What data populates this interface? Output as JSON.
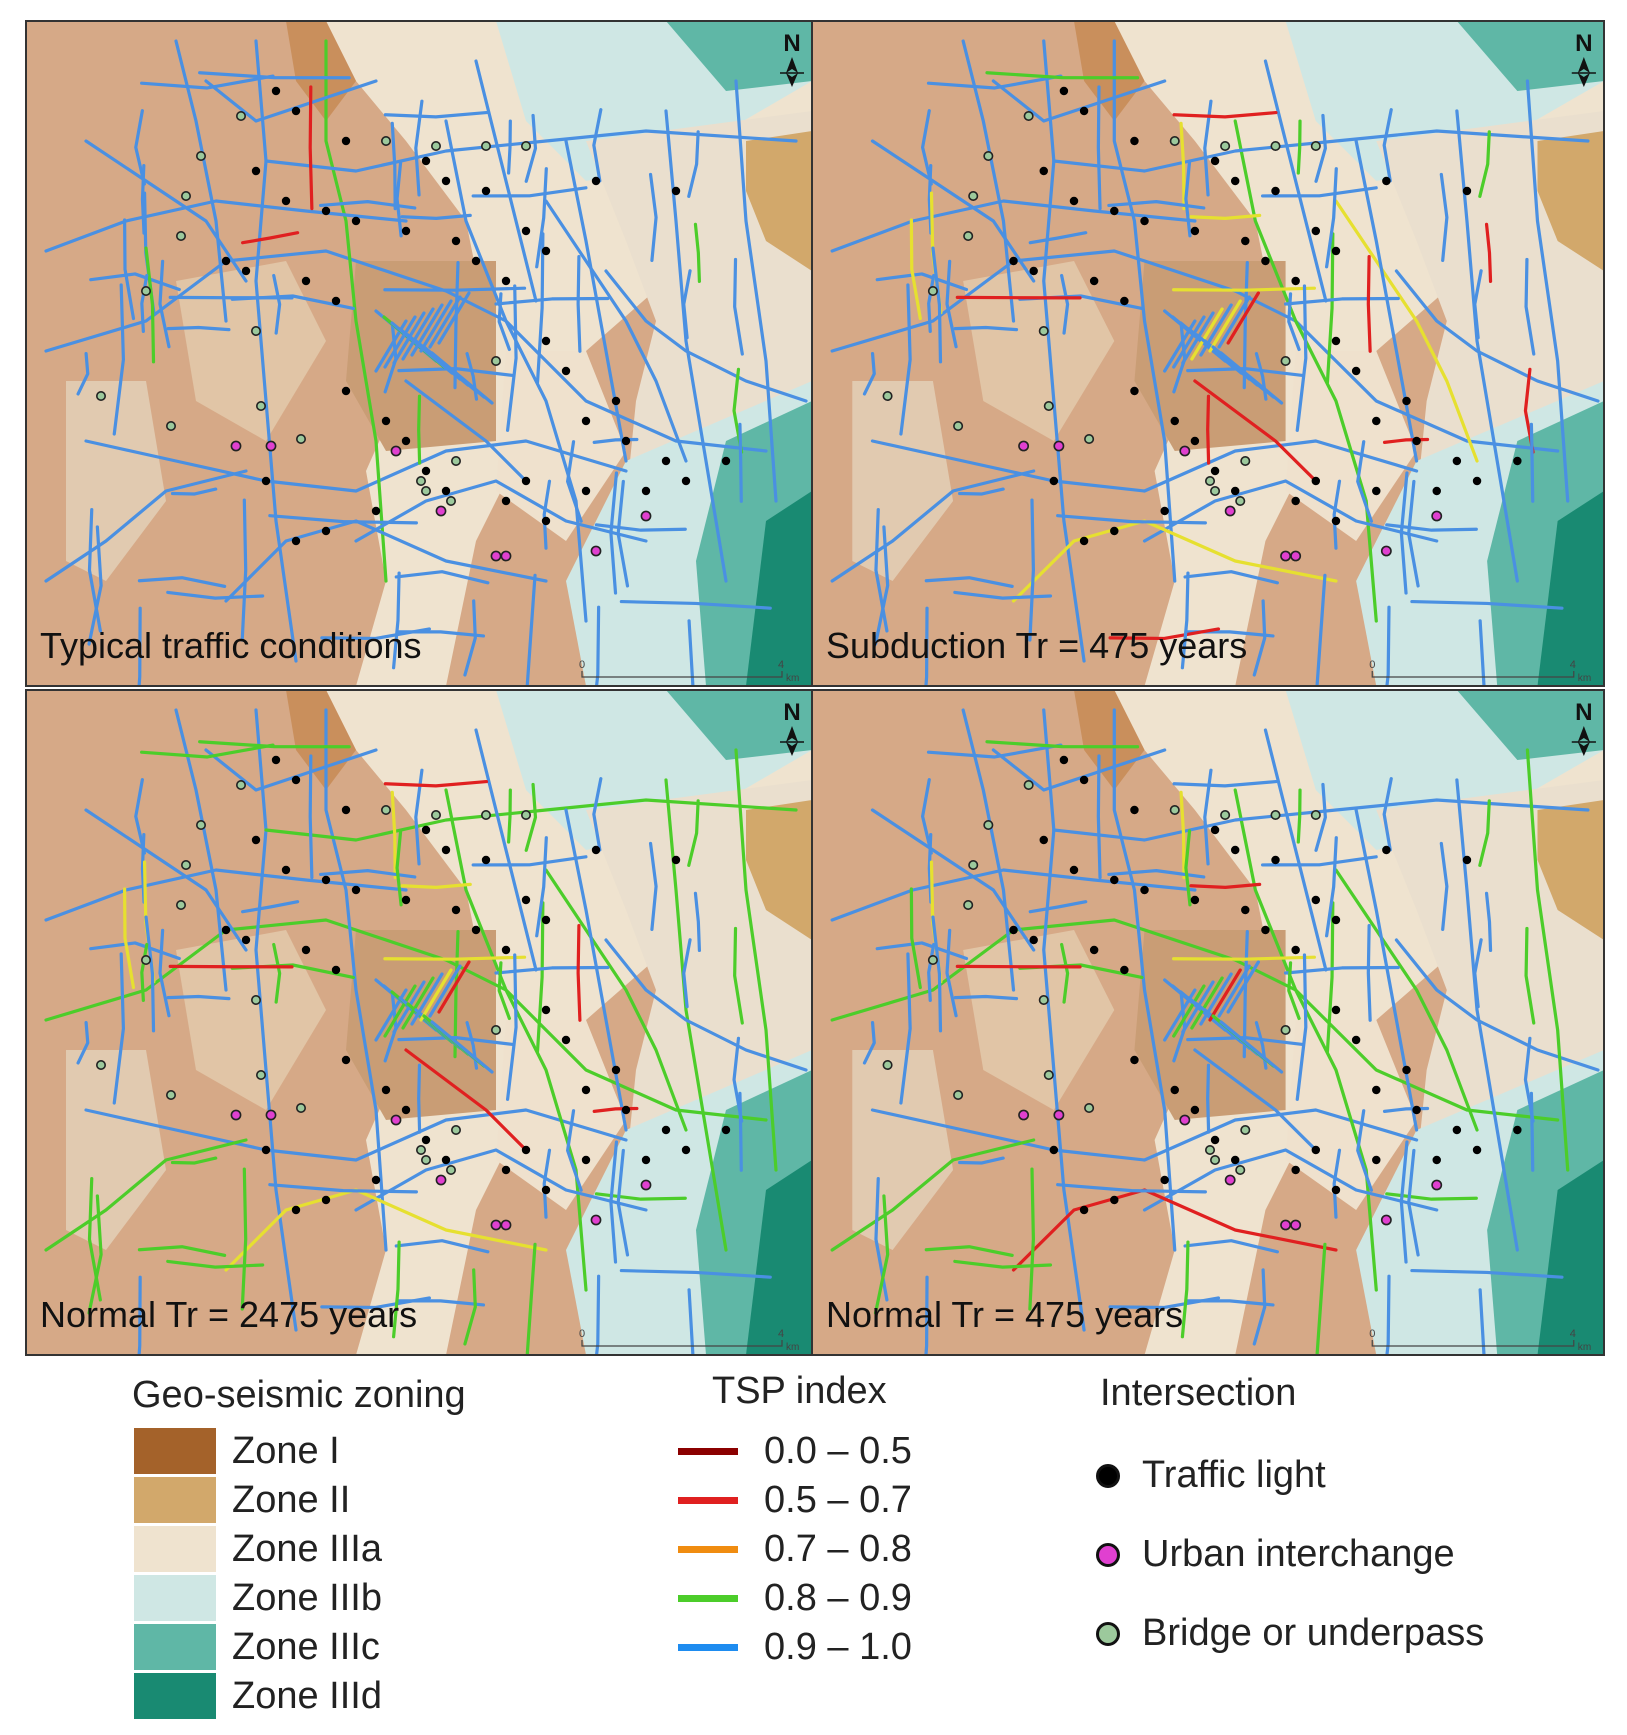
{
  "panels": [
    {
      "label": "Typical traffic conditions",
      "scale": {
        "start": "0",
        "end": "4",
        "unit": "km"
      },
      "north": "N",
      "segment_class": {
        "0.0 – 0.5": 0,
        "0.5 – 0.7": 1,
        "0.7 – 0.8": 0,
        "0.8 – 0.9": 8,
        "0.9 – 1.0": 90
      }
    },
    {
      "label": "Subduction Tr = 475 years",
      "scale": {
        "start": "0",
        "end": "4",
        "unit": "km"
      },
      "north": "N",
      "segment_class": {
        "0.0 – 0.5": 1,
        "0.5 – 0.7": 12,
        "0.7 – 0.8": 0,
        "0.8 – 0.9": 8,
        "0.9 – 1.0": 70
      }
    },
    {
      "label": "Normal Tr = 2475 years",
      "scale": {
        "start": "0",
        "end": "4",
        "unit": "km"
      },
      "north": "N",
      "segment_class": {
        "0.0 – 0.5": 1,
        "0.5 – 0.7": 6,
        "0.7 – 0.8": 0,
        "0.8 – 0.9": 40,
        "0.9 – 1.0": 55
      }
    },
    {
      "label": "Normal Tr = 475 years",
      "scale": {
        "start": "0",
        "end": "4",
        "unit": "km"
      },
      "north": "N",
      "segment_class": {
        "0.0 – 0.5": 1,
        "0.5 – 0.7": 3,
        "0.7 – 0.8": 0,
        "0.8 – 0.9": 28,
        "0.9 – 1.0": 68
      }
    }
  ],
  "legend": {
    "zoning": {
      "title": "Geo-seismic zoning",
      "items": [
        {
          "label": "Zone I",
          "color": "#a4622a"
        },
        {
          "label": "Zone II",
          "color": "#d2a86b"
        },
        {
          "label": "Zone IIIa",
          "color": "#efe3cf"
        },
        {
          "label": "Zone IIIb",
          "color": "#cfe7e4"
        },
        {
          "label": "Zone IIIc",
          "color": "#5fb7a6"
        },
        {
          "label": "Zone IIId",
          "color": "#198a72"
        }
      ]
    },
    "tsp": {
      "title": "TSP index",
      "items": [
        {
          "label": "0.0 – 0.5",
          "color": "#8b0000"
        },
        {
          "label": "0.5 – 0.7",
          "color": "#e02020"
        },
        {
          "label": "0.7 – 0.8",
          "color": "#f08c10"
        },
        {
          "label": "0.8 – 0.9",
          "color": "#4ccd2a"
        },
        {
          "label": "0.9 – 1.0",
          "color": "#1e8cf0"
        }
      ]
    },
    "intersection": {
      "title": "Intersection",
      "items": [
        {
          "label": "Traffic light",
          "color": "#000000",
          "icon": "traffic-light-dot"
        },
        {
          "label": "Urban interchange",
          "color": "#e040d0",
          "icon": "urban-interchange-dot"
        },
        {
          "label": "Bridge or underpass",
          "color": "#9cc99c",
          "icon": "bridge-dot"
        }
      ]
    }
  },
  "colors": {
    "road": "#4a90e2",
    "subduction_road_yellow": "#e6e030",
    "traffic_light": "#000000"
  }
}
